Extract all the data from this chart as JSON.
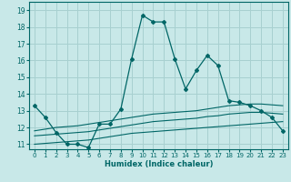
{
  "xlabel": "Humidex (Indice chaleur)",
  "ylabel": "",
  "bg_color": "#c8e8e8",
  "grid_color": "#a8d0d0",
  "line_color": "#006666",
  "xlim": [
    -0.5,
    23.5
  ],
  "ylim": [
    10.7,
    19.5
  ],
  "yticks": [
    11,
    12,
    13,
    14,
    15,
    16,
    17,
    18,
    19
  ],
  "xticks": [
    0,
    1,
    2,
    3,
    4,
    5,
    6,
    7,
    8,
    9,
    10,
    11,
    12,
    13,
    14,
    15,
    16,
    17,
    18,
    19,
    20,
    21,
    22,
    23
  ],
  "main_line_x": [
    0,
    1,
    2,
    3,
    4,
    5,
    6,
    7,
    8,
    9,
    10,
    11,
    12,
    13,
    14,
    15,
    16,
    17,
    18,
    19,
    20,
    21,
    22,
    23
  ],
  "main_line_y": [
    13.3,
    12.6,
    11.7,
    11.0,
    11.0,
    10.8,
    12.2,
    12.2,
    13.1,
    16.1,
    18.7,
    18.3,
    18.3,
    16.1,
    14.3,
    15.4,
    16.3,
    15.7,
    13.6,
    13.5,
    13.3,
    13.0,
    12.6,
    11.8
  ],
  "upper_band_y": [
    11.8,
    11.9,
    12.0,
    12.05,
    12.1,
    12.2,
    12.3,
    12.4,
    12.5,
    12.6,
    12.7,
    12.8,
    12.85,
    12.9,
    12.95,
    13.0,
    13.1,
    13.2,
    13.3,
    13.35,
    13.4,
    13.4,
    13.35,
    13.3
  ],
  "middle_band_y": [
    11.5,
    11.55,
    11.6,
    11.65,
    11.7,
    11.75,
    11.85,
    11.95,
    12.05,
    12.15,
    12.25,
    12.35,
    12.4,
    12.45,
    12.5,
    12.55,
    12.65,
    12.7,
    12.8,
    12.85,
    12.9,
    12.9,
    12.85,
    12.8
  ],
  "lower_band_y": [
    11.0,
    11.05,
    11.1,
    11.15,
    11.2,
    11.25,
    11.35,
    11.45,
    11.55,
    11.65,
    11.7,
    11.75,
    11.8,
    11.85,
    11.9,
    11.95,
    12.0,
    12.05,
    12.1,
    12.15,
    12.2,
    12.25,
    12.3,
    12.35
  ]
}
